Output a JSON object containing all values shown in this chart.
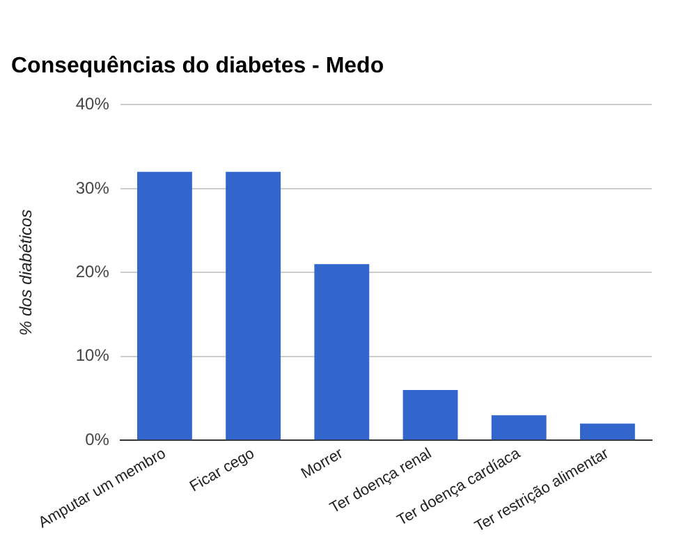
{
  "chart_data": {
    "type": "bar",
    "title": "Consequências do diabetes - Medo",
    "ylabel": "% dos diabéticos",
    "categories": [
      "Amputar um membro",
      "Ficar cego",
      "Morrer",
      "Ter doença renal",
      "Ter doença cardíaca",
      "Ter restrição alimentar"
    ],
    "values": [
      32,
      32,
      21,
      6,
      3,
      2
    ],
    "color": "#3366cc",
    "ylim": [
      0,
      40
    ],
    "yticks": [
      {
        "value": 0,
        "label": "0%"
      },
      {
        "value": 10,
        "label": "10%"
      },
      {
        "value": 20,
        "label": "20%"
      },
      {
        "value": 30,
        "label": "30%"
      },
      {
        "value": 40,
        "label": "40%"
      }
    ],
    "grid": "y",
    "legend": false
  }
}
